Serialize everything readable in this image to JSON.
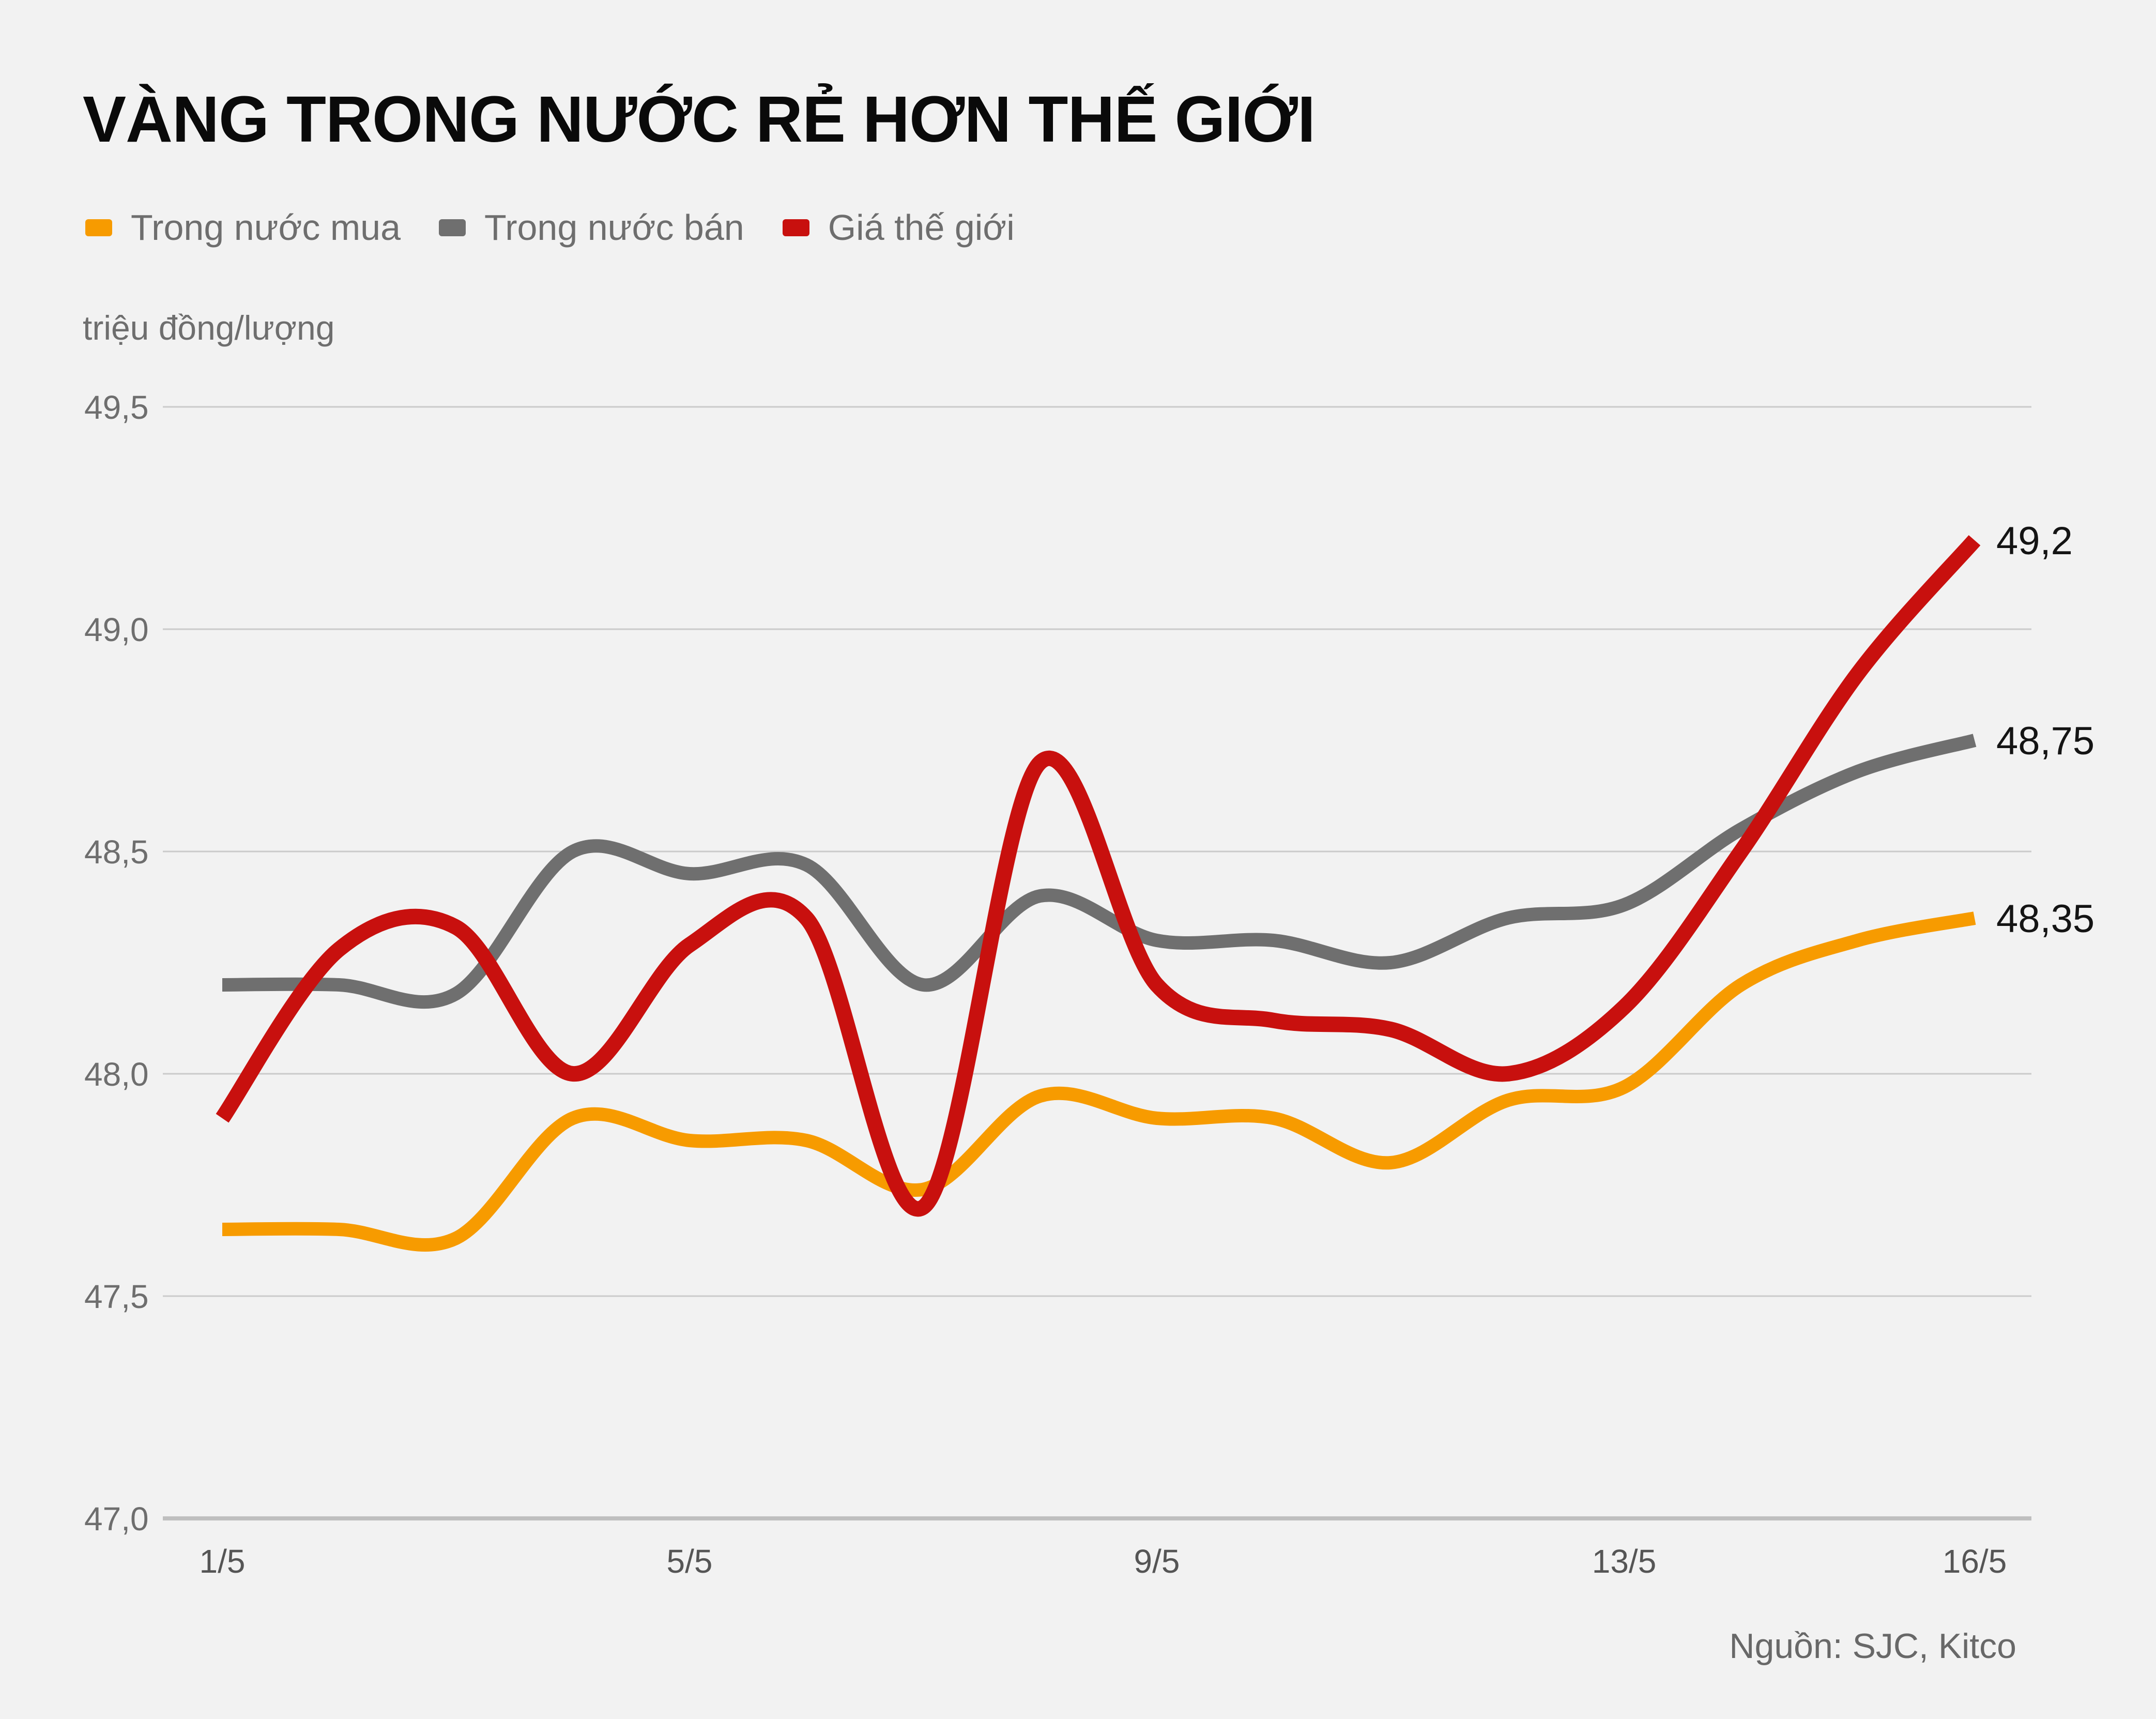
{
  "title": "VÀNG TRONG NƯỚC RẺ HƠN THẾ GIỚI",
  "unit_label": "triệu đồng/lượng",
  "source": "Nguồn: SJC, Kitco",
  "colors": {
    "background": "#F2F2F2",
    "gridline": "#CBCBCB",
    "axis_line": "#BFBFBF",
    "y_tick_text": "#6E6E6E",
    "x_tick_text": "#555555",
    "title_text": "#0A0A0A",
    "end_label_text": "#141414",
    "legend_text": "#6E6E6E",
    "source_text": "#686868"
  },
  "chart_data": {
    "type": "line",
    "title": "VÀNG TRONG NƯỚC RẺ HƠN THẾ GIỚI",
    "ylabel": "triệu đồng/lượng",
    "ylim": [
      47.0,
      49.5
    ],
    "grid": true,
    "legend_position": "top-left",
    "x": [
      "1/5",
      "2/5",
      "3/5",
      "4/5",
      "5/5",
      "6/5",
      "7/5",
      "8/5",
      "9/5",
      "10/5",
      "11/5",
      "12/5",
      "13/5",
      "14/5",
      "15/5",
      "16/5"
    ],
    "x_tick_marks": [
      {
        "label": "1/5",
        "day_index": 0
      },
      {
        "label": "5/5",
        "day_index": 4
      },
      {
        "label": "9/5",
        "day_index": 8
      },
      {
        "label": "13/5",
        "day_index": 12
      },
      {
        "label": "16/5",
        "day_index": 15
      }
    ],
    "y_ticks": [
      {
        "label": "49,5",
        "value": 49.5
      },
      {
        "label": "49,0",
        "value": 49.0
      },
      {
        "label": "48,5",
        "value": 48.5
      },
      {
        "label": "48,0",
        "value": 48.0
      },
      {
        "label": "47,5",
        "value": 47.5
      },
      {
        "label": "47,0",
        "value": 47.0
      }
    ],
    "series": [
      {
        "id": "trong-nuoc-mua",
        "name": "Trong nước mua",
        "color": "#F79B00",
        "stroke_width": 26,
        "end_label": "48,35",
        "values": [
          47.65,
          47.65,
          47.63,
          47.9,
          47.85,
          47.85,
          47.74,
          47.95,
          47.9,
          47.9,
          47.8,
          47.94,
          47.97,
          48.2,
          48.3,
          48.35
        ]
      },
      {
        "id": "trong-nuoc-ban",
        "name": "Trong nước bán",
        "color": "#6F6F6F",
        "stroke_width": 26,
        "end_label": "48,75",
        "values": [
          48.2,
          48.2,
          48.18,
          48.5,
          48.45,
          48.47,
          48.2,
          48.4,
          48.3,
          48.3,
          48.25,
          48.35,
          48.38,
          48.55,
          48.68,
          48.75
        ]
      },
      {
        "id": "gia-the-gioi",
        "name": "Giá thế giới",
        "color": "#C8100E",
        "stroke_width": 30,
        "end_label": "49,2",
        "values": [
          47.9,
          48.28,
          48.33,
          48.0,
          48.29,
          48.35,
          47.7,
          48.7,
          48.2,
          48.12,
          48.1,
          48.0,
          48.15,
          48.5,
          48.9,
          49.2
        ]
      }
    ]
  }
}
